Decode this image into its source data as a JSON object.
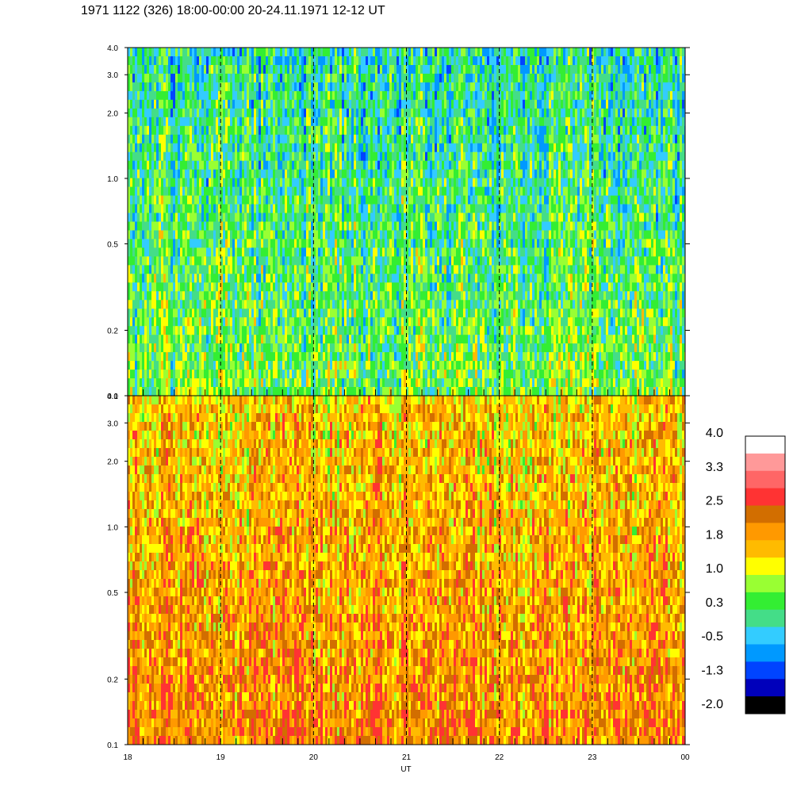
{
  "title": "1971 1122 (326) 18:00-00:00 20-24.11.1971  12-12 UT",
  "chart_data": [
    {
      "type": "heatmap",
      "panel": "top",
      "xlabel": "",
      "x_ticks": [
        "18",
        "19",
        "20",
        "21",
        "22",
        "23",
        "00"
      ],
      "x_range": [
        18,
        24
      ],
      "y_scale": "log",
      "ylim": [
        0.1,
        4.0
      ],
      "y_ticks": [
        "0.1",
        "0.2",
        "0.5",
        "1.0",
        "2.0",
        "3.0",
        "4.0"
      ],
      "y_tick_values": [
        0.1,
        0.2,
        0.5,
        1.0,
        2.0,
        3.0,
        4.0
      ],
      "dashed_vlines": [
        19,
        20,
        21,
        22,
        23
      ],
      "typical_value_range": [
        -1.3,
        1.8
      ],
      "dominant_value": 0.3
    },
    {
      "type": "heatmap",
      "panel": "bottom",
      "xlabel": "UT",
      "x_ticks": [
        "18",
        "19",
        "20",
        "21",
        "22",
        "23",
        "00"
      ],
      "x_range": [
        18,
        24
      ],
      "y_scale": "log",
      "ylim": [
        0.1,
        4.0
      ],
      "y_ticks": [
        "0.1",
        "0.2",
        "0.5",
        "1.0",
        "2.0",
        "3.0",
        "4.0"
      ],
      "y_tick_values": [
        0.1,
        0.2,
        0.5,
        1.0,
        2.0,
        3.0,
        4.0
      ],
      "dashed_vlines": [
        19,
        20,
        21,
        22,
        23
      ],
      "typical_value_range": [
        0.3,
        2.5
      ],
      "dominant_value": 1.8
    }
  ],
  "colorbar": {
    "labels": [
      "4.0",
      "3.3",
      "2.5",
      "1.8",
      "1.0",
      "0.3",
      "-0.5",
      "-1.3",
      "-2.0"
    ],
    "colors": [
      "#ffffff",
      "#ff9999",
      "#ff6666",
      "#ff3333",
      "#d26e00",
      "#ff9900",
      "#ffbb00",
      "#ffff00",
      "#99ff33",
      "#33ee33",
      "#44dd88",
      "#33ccff",
      "#0099ff",
      "#0044ff",
      "#0000bb",
      "#000000"
    ]
  }
}
